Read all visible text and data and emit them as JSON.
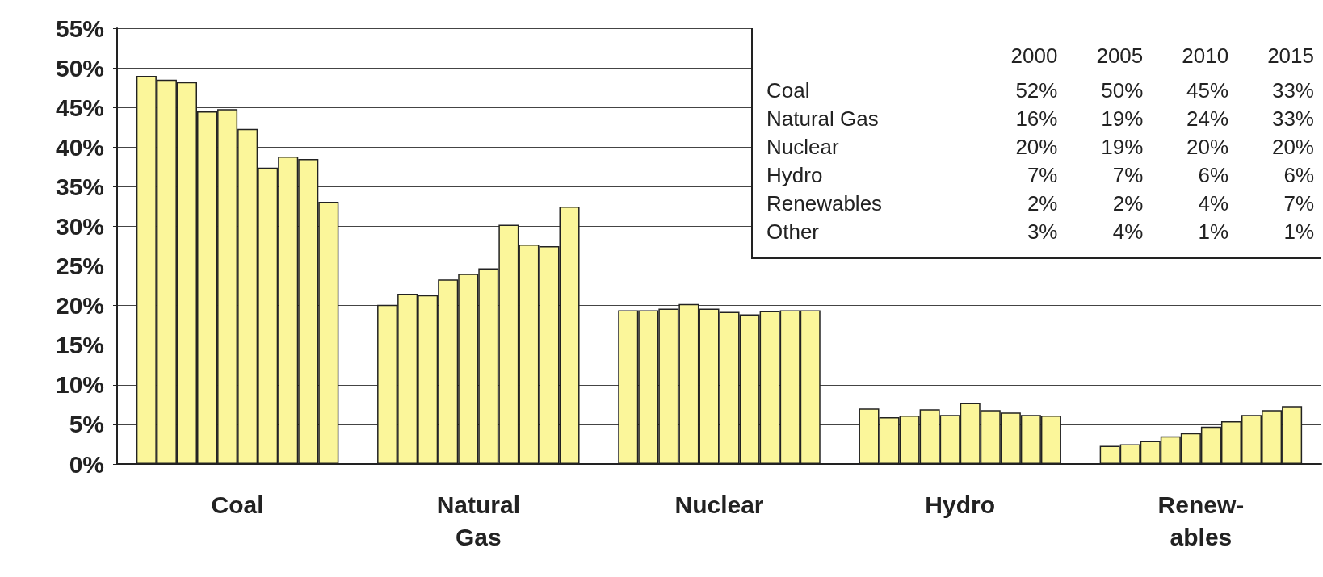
{
  "chart_data": [
    {
      "type": "bar",
      "categories": [
        "Coal",
        "Natural\nGas",
        "Nuclear",
        "Hydro",
        "Renew-\nables"
      ],
      "series": [
        {
          "color": "#fbf69a",
          "values": [
            49.0,
            20.1,
            19.4,
            7.0,
            2.3
          ]
        },
        {
          "color": "#fbf69a",
          "values": [
            48.5,
            21.5,
            19.4,
            5.9,
            2.5
          ]
        },
        {
          "color": "#fbf69a",
          "values": [
            48.2,
            21.3,
            19.6,
            6.1,
            2.9
          ]
        },
        {
          "color": "#fbf69a",
          "values": [
            44.5,
            23.3,
            20.2,
            6.9,
            3.5
          ]
        },
        {
          "color": "#fbf69a",
          "values": [
            44.8,
            24.0,
            19.6,
            6.2,
            3.9
          ]
        },
        {
          "color": "#fbf69a",
          "values": [
            42.3,
            24.7,
            19.2,
            7.7,
            4.7
          ]
        },
        {
          "color": "#fbf69a",
          "values": [
            37.4,
            30.2,
            18.9,
            6.8,
            5.4
          ]
        },
        {
          "color": "#fbf69a",
          "values": [
            38.8,
            27.7,
            19.3,
            6.5,
            6.2
          ]
        },
        {
          "color": "#fbf69a",
          "values": [
            38.5,
            27.5,
            19.4,
            6.2,
            6.8
          ]
        },
        {
          "color": "#fbf69a",
          "values": [
            33.1,
            32.5,
            19.4,
            6.1,
            7.3
          ]
        }
      ],
      "ylim": [
        0,
        55
      ],
      "yticks": [
        {
          "value": 0,
          "label": "0%"
        },
        {
          "value": 5,
          "label": "5%"
        },
        {
          "value": 10,
          "label": "10%"
        },
        {
          "value": 15,
          "label": "15%"
        },
        {
          "value": 20,
          "label": "20%"
        },
        {
          "value": 25,
          "label": "25%"
        },
        {
          "value": 30,
          "label": "30%"
        },
        {
          "value": 35,
          "label": "35%"
        },
        {
          "value": 40,
          "label": "40%"
        },
        {
          "value": 45,
          "label": "45%"
        },
        {
          "value": 50,
          "label": "50%"
        },
        {
          "value": 55,
          "label": "55%"
        }
      ],
      "grid": "y"
    },
    {
      "type": "heatmap",
      "categories": [
        "2000",
        "2005",
        "2010",
        "2015"
      ],
      "y_categories": [
        "Coal",
        "Natural Gas",
        "Nuclear",
        "Hydro",
        "Renewables",
        "Other"
      ],
      "cells": [
        [
          52,
          50,
          45,
          33
        ],
        [
          16,
          19,
          24,
          33
        ],
        [
          20,
          19,
          20,
          20
        ],
        [
          7,
          7,
          6,
          6
        ],
        [
          2,
          2,
          4,
          7
        ],
        [
          3,
          4,
          1,
          1
        ]
      ],
      "cell_labels": [
        [
          "52%",
          "50%",
          "45%",
          "33%"
        ],
        [
          "16%",
          "19%",
          "24%",
          "33%"
        ],
        [
          "20%",
          "19%",
          "20%",
          "20%"
        ],
        [
          "7%",
          "7%",
          "6%",
          "6%"
        ],
        [
          "2%",
          "2%",
          "4%",
          "7%"
        ],
        [
          "3%",
          "4%",
          "1%",
          "1%"
        ]
      ]
    }
  ]
}
